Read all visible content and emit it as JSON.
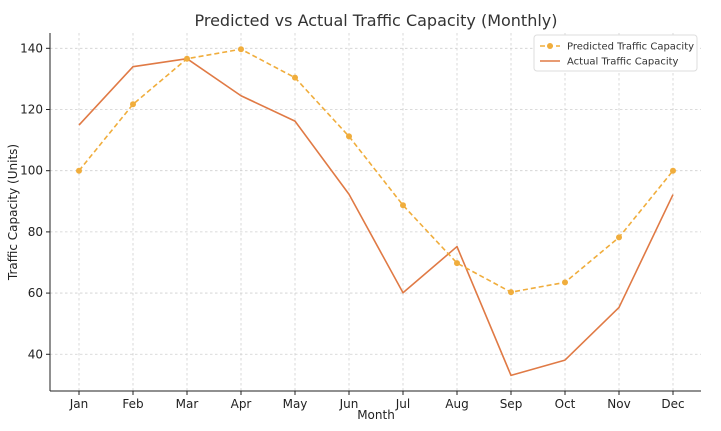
{
  "chart_data": {
    "type": "line",
    "title": "Predicted vs Actual Traffic Capacity (Monthly)",
    "xlabel": "Month",
    "ylabel": "Traffic Capacity (Units)",
    "categories": [
      "Jan",
      "Feb",
      "Mar",
      "Apr",
      "May",
      "Jun",
      "Jul",
      "Aug",
      "Sep",
      "Oct",
      "Nov",
      "Dec"
    ],
    "ylim": [
      28,
      145
    ],
    "yticks": [
      40,
      60,
      80,
      100,
      120,
      140
    ],
    "grid": true,
    "legend_position": "top-right",
    "series": [
      {
        "name": "Predicted Traffic Capacity",
        "color": "#f0ad3c",
        "style": "dashed",
        "marker": "circle",
        "values": [
          100,
          121.7,
          136.6,
          139.7,
          130.4,
          111.2,
          88.7,
          69.8,
          60.3,
          63.5,
          78.2,
          100
        ]
      },
      {
        "name": "Actual Traffic Capacity",
        "color": "#e07a45",
        "style": "solid",
        "marker": "none",
        "values": [
          114.9,
          134,
          136.6,
          124.5,
          116.2,
          92.3,
          60.1,
          75.2,
          33.1,
          38.1,
          55.3,
          92.2
        ]
      }
    ]
  }
}
